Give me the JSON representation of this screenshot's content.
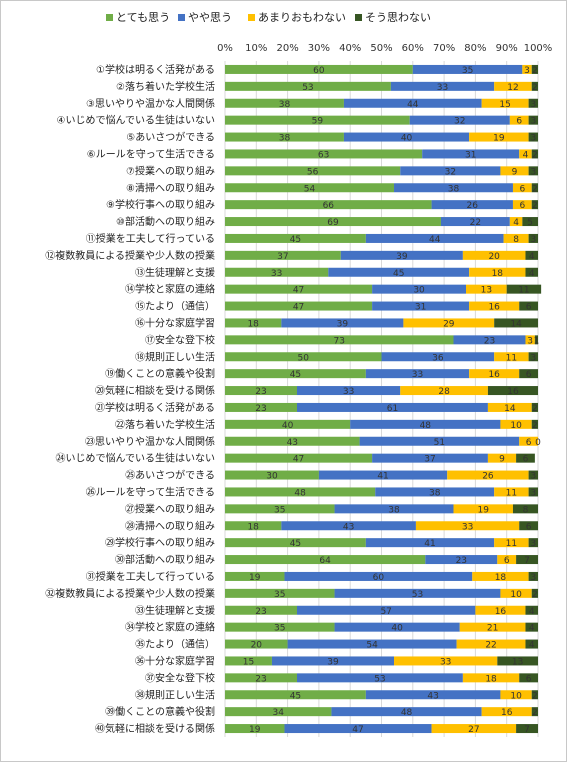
{
  "chart_data": {
    "type": "bar",
    "orientation": "horizontal",
    "stacked": true,
    "xlim": [
      0,
      100
    ],
    "x_ticks": [
      "0%",
      "10%",
      "20%",
      "30%",
      "40%",
      "50%",
      "60%",
      "70%",
      "80%",
      "90%",
      "100%"
    ],
    "legend_position": "top",
    "grid": true,
    "categories": [
      "①学校は明るく活発がある",
      "②落ち着いた学校生活",
      "③思いやりや温かな人間関係",
      "④いじめで悩んでいる生徒はいない",
      "⑤あいさつができる",
      "⑥ルールを守って生活できる",
      "⑦授業への取り組み",
      "⑧清掃への取り組み",
      "⑨学校行事への取り組み",
      "⑩部活動への取り組み",
      "⑪授業を工夫して行っている",
      "⑫複数教員による授業や少人数の授業",
      "⑬生徒理解と支援",
      "⑭学校と家庭の連絡",
      "⑮たより（通信）",
      "⑯十分な家庭学習",
      "⑰安全な登下校",
      "⑱規則正しい生活",
      "⑲働くことの意義や役割",
      "⑳気軽に相談を受ける関係",
      "㉑学校は明るく活発がある",
      "㉒落ち着いた学校生活",
      "㉓思いやりや温かな人間関係",
      "㉔いじめで悩んでいる生徒はいない",
      "㉕あいさつができる",
      "㉖ルールを守って生活できる",
      "㉗授業への取り組み",
      "㉘清掃への取り組み",
      "㉙学校行事への取り組み",
      "㉚部活動への取り組み",
      "㉛授業を工夫して行っている",
      "㉜複数教員による授業や少人数の授業",
      "㉝生徒理解と支援",
      "㉞学校と家庭の連絡",
      "㉟たより（通信）",
      "㊱十分な家庭学習",
      "㊲安全な登下校",
      "㊳規則正しい生活",
      "㊴働くことの意義や役割",
      "㊵気軽に相談を受ける関係"
    ],
    "series": [
      {
        "name": "とても思う",
        "color": "#70ad47",
        "values": [
          60,
          53,
          38,
          59,
          38,
          63,
          56,
          54,
          66,
          69,
          45,
          37,
          33,
          47,
          47,
          18,
          73,
          50,
          45,
          23,
          23,
          40,
          43,
          47,
          30,
          48,
          35,
          18,
          45,
          64,
          19,
          35,
          23,
          35,
          20,
          15,
          23,
          45,
          34,
          19
        ]
      },
      {
        "name": "やや思う",
        "color": "#4472c4",
        "values": [
          35,
          33,
          44,
          32,
          40,
          31,
          32,
          38,
          26,
          22,
          44,
          39,
          45,
          30,
          31,
          39,
          23,
          36,
          33,
          33,
          61,
          48,
          51,
          37,
          41,
          38,
          38,
          43,
          41,
          23,
          60,
          53,
          57,
          40,
          54,
          39,
          53,
          43,
          48,
          47
        ]
      },
      {
        "name": "あまりおもわない",
        "color": "#ffc000",
        "values": [
          3,
          12,
          15,
          6,
          19,
          4,
          9,
          6,
          6,
          4,
          8,
          20,
          18,
          13,
          16,
          29,
          3,
          11,
          16,
          28,
          14,
          10,
          6,
          9,
          26,
          11,
          19,
          33,
          11,
          6,
          18,
          10,
          16,
          21,
          22,
          33,
          18,
          10,
          16,
          27
        ]
      },
      {
        "name": "そう思わない",
        "color": "#375623",
        "values": [
          2,
          2,
          3,
          3,
          3,
          2,
          3,
          2,
          2,
          5,
          3,
          4,
          4,
          11,
          6,
          14,
          1,
          3,
          6,
          16,
          2,
          2,
          0,
          6,
          3,
          3,
          8,
          6,
          3,
          7,
          3,
          2,
          4,
          4,
          4,
          13,
          6,
          2,
          2,
          7
        ]
      }
    ]
  }
}
